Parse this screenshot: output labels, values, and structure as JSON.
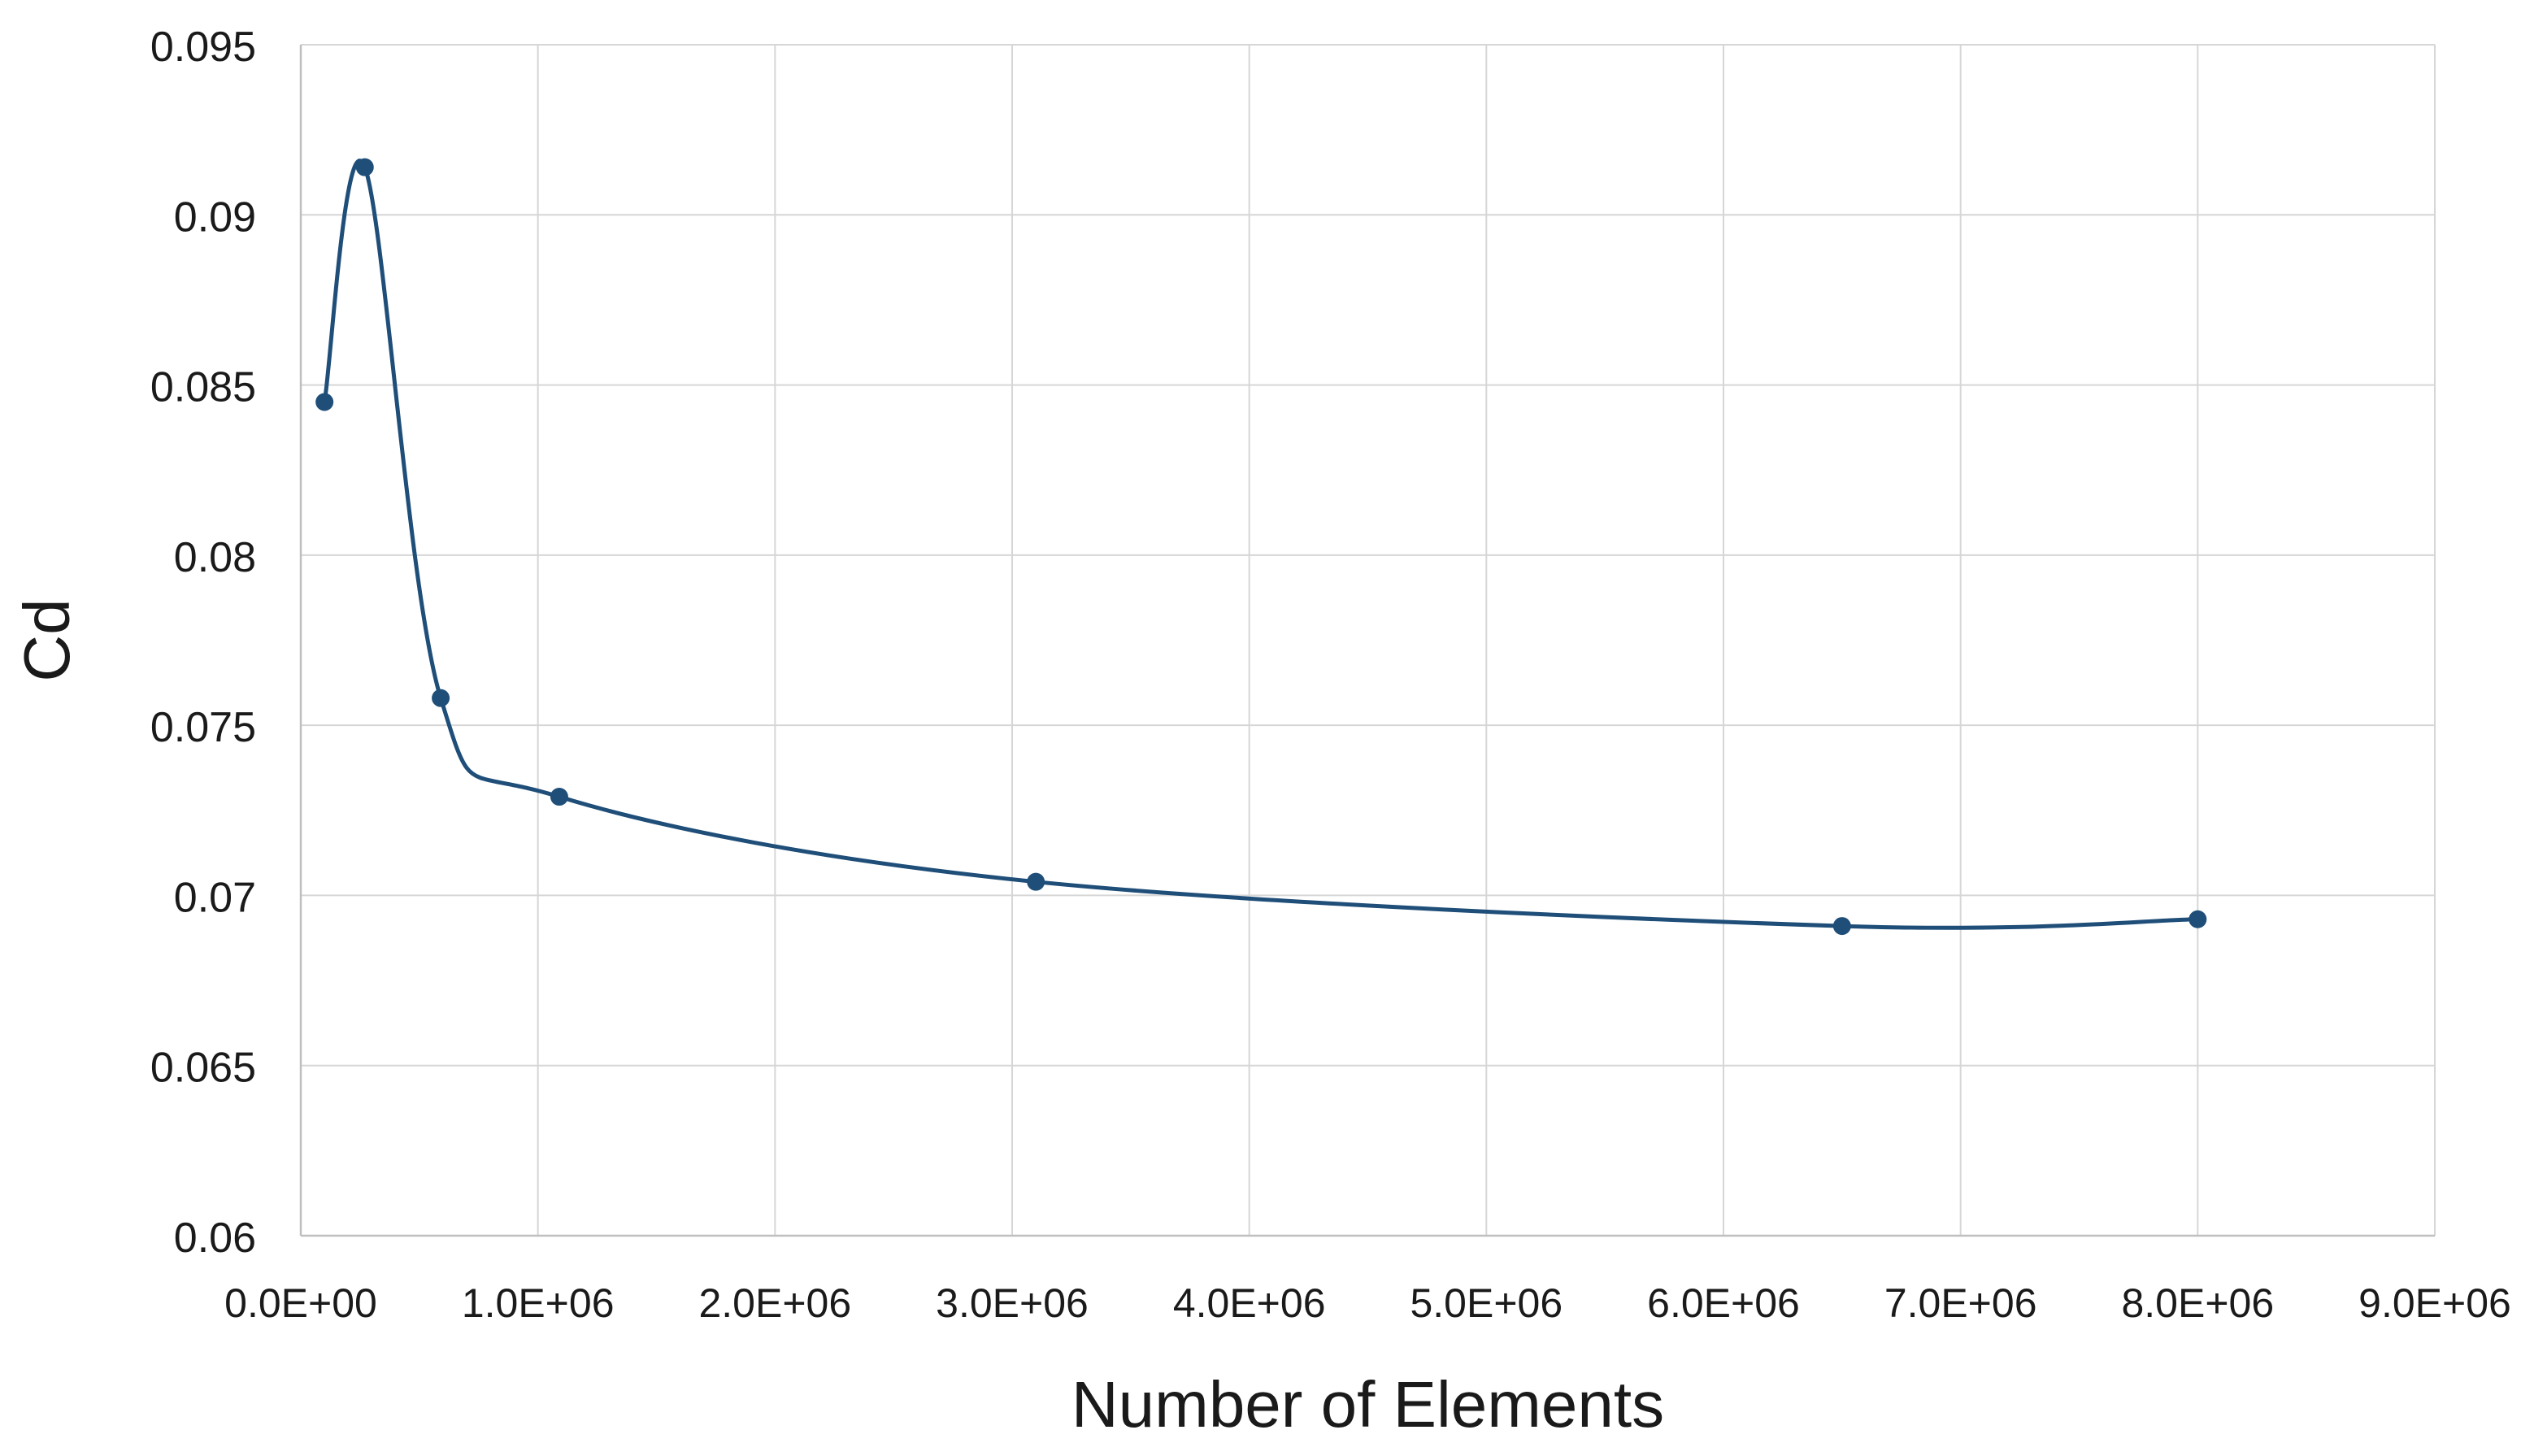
{
  "chart_data": {
    "type": "line",
    "title": "",
    "xlabel": "Number of Elements",
    "ylabel": "Cd",
    "xlim": [
      0,
      9000000
    ],
    "ylim": [
      0.06,
      0.095
    ],
    "x_ticks": [
      0,
      1000000,
      2000000,
      3000000,
      4000000,
      5000000,
      6000000,
      7000000,
      8000000,
      9000000
    ],
    "x_tick_labels": [
      "0.0E+00",
      "1.0E+06",
      "2.0E+06",
      "3.0E+06",
      "4.0E+06",
      "5.0E+06",
      "6.0E+06",
      "7.0E+06",
      "8.0E+06",
      "9.0E+06"
    ],
    "y_ticks": [
      0.06,
      0.065,
      0.07,
      0.075,
      0.08,
      0.085,
      0.09,
      0.095
    ],
    "y_tick_labels": [
      "0.06",
      "0.065",
      "0.07",
      "0.075",
      "0.08",
      "0.085",
      "0.09",
      "0.095"
    ],
    "grid": true,
    "smooth": true,
    "markers": true,
    "series": [
      {
        "color": "#1f4e79",
        "points": [
          {
            "x": 100000,
            "y": 0.0845
          },
          {
            "x": 270000,
            "y": 0.0914
          },
          {
            "x": 590000,
            "y": 0.0758
          },
          {
            "x": 1090000,
            "y": 0.0729
          },
          {
            "x": 3100000,
            "y": 0.0704
          },
          {
            "x": 6500000,
            "y": 0.0691
          },
          {
            "x": 8000000,
            "y": 0.0693
          }
        ]
      }
    ]
  }
}
